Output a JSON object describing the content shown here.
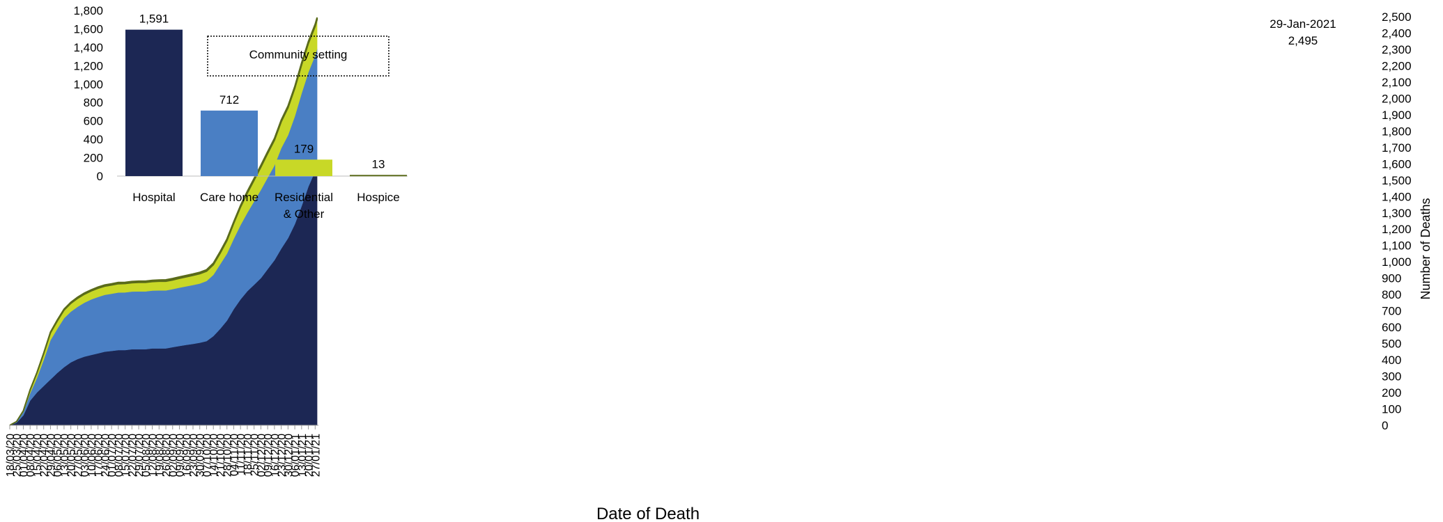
{
  "chart_data": [
    {
      "type": "area",
      "stacked": true,
      "cumulative": true,
      "xlabel": "Date of Death",
      "ylabel": "Number of Deaths",
      "y_axis_side": "right",
      "ylim": [
        0,
        2500
      ],
      "y_ticks": [
        0,
        100,
        200,
        300,
        400,
        500,
        600,
        700,
        800,
        900,
        1000,
        1100,
        1200,
        1300,
        1400,
        1500,
        1600,
        1700,
        1800,
        1900,
        2000,
        2100,
        2200,
        2300,
        2400,
        2500
      ],
      "y_tick_labels": [
        "0",
        "100",
        "200",
        "300",
        "400",
        "500",
        "600",
        "700",
        "800",
        "900",
        "1,000",
        "1,100",
        "1,200",
        "1,300",
        "1,400",
        "1,500",
        "1,600",
        "1,700",
        "1,800",
        "1,900",
        "2,000",
        "2,100",
        "2,200",
        "2,300",
        "2,400",
        "2,500"
      ],
      "x_start": "18/03/20",
      "x_end": "29/01/21",
      "x_tick_labels": [
        "18/03/20",
        "25/03/20",
        "01/04/20",
        "08/04/20",
        "15/04/20",
        "22/04/20",
        "29/04/20",
        "06/05/20",
        "13/05/20",
        "20/05/20",
        "27/05/20",
        "03/06/20",
        "10/06/20",
        "17/06/20",
        "24/06/20",
        "01/07/20",
        "08/07/20",
        "15/07/20",
        "22/07/20",
        "29/07/20",
        "05/08/20",
        "12/08/20",
        "19/08/20",
        "26/08/20",
        "02/09/20",
        "09/09/20",
        "16/09/20",
        "23/09/20",
        "30/09/20",
        "07/10/20",
        "14/10/20",
        "21/10/20",
        "28/10/20",
        "04/11/20",
        "11/11/20",
        "18/11/20",
        "25/11/20",
        "02/12/20",
        "09/12/20",
        "16/12/20",
        "23/12/20",
        "30/12/20",
        "06/01/21",
        "13/01/21",
        "20/01/21",
        "27/01/21"
      ],
      "x": [
        "18/03/20",
        "25/03/20",
        "01/04/20",
        "08/04/20",
        "15/04/20",
        "22/04/20",
        "29/04/20",
        "06/05/20",
        "13/05/20",
        "20/05/20",
        "27/05/20",
        "03/06/20",
        "10/06/20",
        "17/06/20",
        "24/06/20",
        "01/07/20",
        "08/07/20",
        "15/07/20",
        "22/07/20",
        "29/07/20",
        "05/08/20",
        "12/08/20",
        "19/08/20",
        "26/08/20",
        "02/09/20",
        "09/09/20",
        "16/09/20",
        "23/09/20",
        "30/09/20",
        "07/10/20",
        "14/10/20",
        "21/10/20",
        "28/10/20",
        "04/11/20",
        "11/11/20",
        "18/11/20",
        "25/11/20",
        "02/12/20",
        "09/12/20",
        "16/12/20",
        "23/12/20",
        "30/12/20",
        "06/01/21",
        "13/01/21",
        "20/01/21",
        "27/01/21",
        "29/01/21"
      ],
      "series": [
        {
          "name": "Hospital",
          "color": "#1c2754",
          "values": [
            0,
            15,
            60,
            150,
            200,
            240,
            280,
            320,
            355,
            385,
            405,
            420,
            430,
            440,
            450,
            455,
            460,
            460,
            465,
            465,
            465,
            470,
            470,
            470,
            478,
            485,
            492,
            498,
            505,
            515,
            545,
            590,
            640,
            710,
            770,
            820,
            860,
            900,
            955,
            1010,
            1080,
            1145,
            1230,
            1340,
            1460,
            1555,
            1591
          ]
        },
        {
          "name": "Care home",
          "color": "#4a7fc4",
          "values": [
            0,
            5,
            20,
            45,
            90,
            160,
            240,
            270,
            300,
            310,
            320,
            330,
            340,
            345,
            348,
            350,
            352,
            353,
            353,
            354,
            354,
            354,
            355,
            355,
            355,
            357,
            358,
            360,
            362,
            368,
            375,
            395,
            410,
            430,
            455,
            480,
            510,
            540,
            560,
            580,
            615,
            630,
            660,
            690,
            700,
            708,
            712
          ]
        },
        {
          "name": "Residential & Other",
          "color": "#c8d827",
          "values": [
            0,
            2,
            8,
            20,
            30,
            38,
            45,
            48,
            50,
            51,
            52,
            52,
            52,
            53,
            53,
            53,
            54,
            54,
            54,
            55,
            55,
            55,
            56,
            56,
            56,
            57,
            58,
            59,
            60,
            60,
            62,
            68,
            80,
            95,
            110,
            120,
            130,
            140,
            148,
            155,
            162,
            168,
            172,
            175,
            177,
            178,
            179
          ]
        },
        {
          "name": "Hospice",
          "color": "#5a6b1a",
          "values": [
            0,
            0,
            1,
            2,
            3,
            4,
            5,
            6,
            6,
            7,
            7,
            7,
            7,
            8,
            8,
            8,
            8,
            8,
            8,
            8,
            8,
            8,
            8,
            9,
            9,
            9,
            9,
            9,
            9,
            9,
            10,
            10,
            10,
            10,
            10,
            11,
            11,
            11,
            11,
            11,
            11,
            12,
            12,
            12,
            12,
            13,
            13
          ]
        }
      ],
      "annotation": {
        "date": "29-Jan-2021",
        "value_label": "2,495"
      }
    },
    {
      "type": "bar",
      "inset_title": "Community  setting",
      "categories": [
        "Hospital",
        "Care home",
        "Residential & Other",
        "Hospice"
      ],
      "category_labels": [
        [
          "Hospital"
        ],
        [
          "Care home"
        ],
        [
          "Residential",
          "& Other"
        ],
        [
          "Hospice"
        ]
      ],
      "values": [
        1591,
        712,
        179,
        13
      ],
      "data_labels": [
        "1,591",
        "712",
        "179",
        "13"
      ],
      "colors": [
        "#1c2754",
        "#4a7fc4",
        "#c8d827",
        "#5a6b1a"
      ],
      "ylim": [
        0,
        1800
      ],
      "y_ticks": [
        0,
        200,
        400,
        600,
        800,
        1000,
        1200,
        1400,
        1600,
        1800
      ],
      "y_tick_labels": [
        "0",
        "200",
        "400",
        "600",
        "800",
        "1,000",
        "1,200",
        "1,400",
        "1,600",
        "1,800"
      ]
    }
  ]
}
